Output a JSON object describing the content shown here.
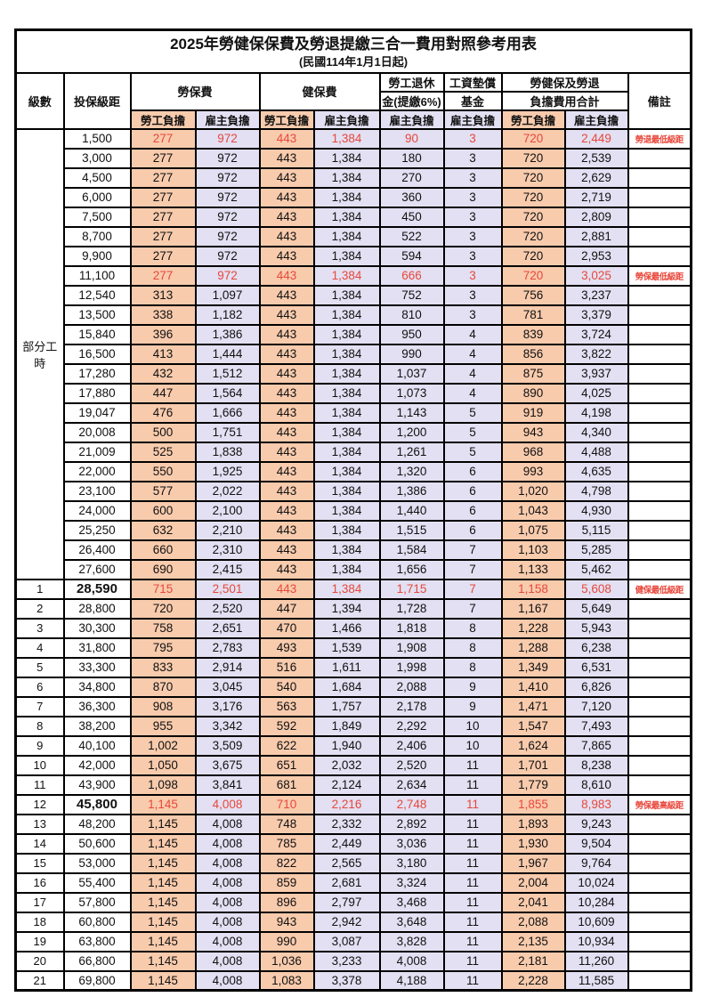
{
  "title": "2025年勞健保保費及勞退提繳三合一費用對照參考用表",
  "subtitle": "(民國114年1月1日起)",
  "columns": {
    "level": "級數",
    "bracket": "投保級距",
    "labor_insurance": "勞保費",
    "health_insurance": "健保費",
    "pension_line1": "勞工退休",
    "pension_line2": "金(提繳6%)",
    "wage_arrears_line1": "工資墊償",
    "wage_arrears_line2": "基金",
    "total_line1": "勞健保及勞退",
    "total_line2": "負擔費用合計",
    "remarks": "備註",
    "employee_share": "勞工負擔",
    "employer_share": "雇主負擔"
  },
  "part_time_label": "部分工時",
  "part_time_rowspan": 23,
  "colors": {
    "employee_share_bg": "#F8CBAD",
    "employer_share_bg": "#E2E0F2",
    "highlight_red": "#E8473B",
    "border": "#000000"
  },
  "value_column_classes": [
    "emp",
    "er",
    "emp",
    "er",
    "er",
    "er",
    "emp",
    "er"
  ],
  "rows": [
    {
      "level": "",
      "bracket": "1,500",
      "values": [
        "277",
        "972",
        "443",
        "1,384",
        "90",
        "3",
        "720",
        "2,449"
      ],
      "remark": "勞退最低級距",
      "red": true,
      "bold": false
    },
    {
      "level": "",
      "bracket": "3,000",
      "values": [
        "277",
        "972",
        "443",
        "1,384",
        "180",
        "3",
        "720",
        "2,539"
      ],
      "remark": "",
      "red": false,
      "bold": false
    },
    {
      "level": "",
      "bracket": "4,500",
      "values": [
        "277",
        "972",
        "443",
        "1,384",
        "270",
        "3",
        "720",
        "2,629"
      ],
      "remark": "",
      "red": false,
      "bold": false
    },
    {
      "level": "",
      "bracket": "6,000",
      "values": [
        "277",
        "972",
        "443",
        "1,384",
        "360",
        "3",
        "720",
        "2,719"
      ],
      "remark": "",
      "red": false,
      "bold": false
    },
    {
      "level": "",
      "bracket": "7,500",
      "values": [
        "277",
        "972",
        "443",
        "1,384",
        "450",
        "3",
        "720",
        "2,809"
      ],
      "remark": "",
      "red": false,
      "bold": false
    },
    {
      "level": "",
      "bracket": "8,700",
      "values": [
        "277",
        "972",
        "443",
        "1,384",
        "522",
        "3",
        "720",
        "2,881"
      ],
      "remark": "",
      "red": false,
      "bold": false
    },
    {
      "level": "",
      "bracket": "9,900",
      "values": [
        "277",
        "972",
        "443",
        "1,384",
        "594",
        "3",
        "720",
        "2,953"
      ],
      "remark": "",
      "red": false,
      "bold": false
    },
    {
      "level": "",
      "bracket": "11,100",
      "values": [
        "277",
        "972",
        "443",
        "1,384",
        "666",
        "3",
        "720",
        "3,025"
      ],
      "remark": "勞保最低級距",
      "red": true,
      "bold": false
    },
    {
      "level": "",
      "bracket": "12,540",
      "values": [
        "313",
        "1,097",
        "443",
        "1,384",
        "752",
        "3",
        "756",
        "3,237"
      ],
      "remark": "",
      "red": false,
      "bold": false
    },
    {
      "level": "",
      "bracket": "13,500",
      "values": [
        "338",
        "1,182",
        "443",
        "1,384",
        "810",
        "3",
        "781",
        "3,379"
      ],
      "remark": "",
      "red": false,
      "bold": false
    },
    {
      "level": "",
      "bracket": "15,840",
      "values": [
        "396",
        "1,386",
        "443",
        "1,384",
        "950",
        "4",
        "839",
        "3,724"
      ],
      "remark": "",
      "red": false,
      "bold": false
    },
    {
      "level": "",
      "bracket": "16,500",
      "values": [
        "413",
        "1,444",
        "443",
        "1,384",
        "990",
        "4",
        "856",
        "3,822"
      ],
      "remark": "",
      "red": false,
      "bold": false
    },
    {
      "level": "",
      "bracket": "17,280",
      "values": [
        "432",
        "1,512",
        "443",
        "1,384",
        "1,037",
        "4",
        "875",
        "3,937"
      ],
      "remark": "",
      "red": false,
      "bold": false
    },
    {
      "level": "",
      "bracket": "17,880",
      "values": [
        "447",
        "1,564",
        "443",
        "1,384",
        "1,073",
        "4",
        "890",
        "4,025"
      ],
      "remark": "",
      "red": false,
      "bold": false
    },
    {
      "level": "",
      "bracket": "19,047",
      "values": [
        "476",
        "1,666",
        "443",
        "1,384",
        "1,143",
        "5",
        "919",
        "4,198"
      ],
      "remark": "",
      "red": false,
      "bold": false
    },
    {
      "level": "",
      "bracket": "20,008",
      "values": [
        "500",
        "1,751",
        "443",
        "1,384",
        "1,200",
        "5",
        "943",
        "4,340"
      ],
      "remark": "",
      "red": false,
      "bold": false
    },
    {
      "level": "",
      "bracket": "21,009",
      "values": [
        "525",
        "1,838",
        "443",
        "1,384",
        "1,261",
        "5",
        "968",
        "4,488"
      ],
      "remark": "",
      "red": false,
      "bold": false
    },
    {
      "level": "",
      "bracket": "22,000",
      "values": [
        "550",
        "1,925",
        "443",
        "1,384",
        "1,320",
        "6",
        "993",
        "4,635"
      ],
      "remark": "",
      "red": false,
      "bold": false
    },
    {
      "level": "",
      "bracket": "23,100",
      "values": [
        "577",
        "2,022",
        "443",
        "1,384",
        "1,386",
        "6",
        "1,020",
        "4,798"
      ],
      "remark": "",
      "red": false,
      "bold": false
    },
    {
      "level": "",
      "bracket": "24,000",
      "values": [
        "600",
        "2,100",
        "443",
        "1,384",
        "1,440",
        "6",
        "1,043",
        "4,930"
      ],
      "remark": "",
      "red": false,
      "bold": false
    },
    {
      "level": "",
      "bracket": "25,250",
      "values": [
        "632",
        "2,210",
        "443",
        "1,384",
        "1,515",
        "6",
        "1,075",
        "5,115"
      ],
      "remark": "",
      "red": false,
      "bold": false
    },
    {
      "level": "",
      "bracket": "26,400",
      "values": [
        "660",
        "2,310",
        "443",
        "1,384",
        "1,584",
        "7",
        "1,103",
        "5,285"
      ],
      "remark": "",
      "red": false,
      "bold": false
    },
    {
      "level": "",
      "bracket": "27,600",
      "values": [
        "690",
        "2,415",
        "443",
        "1,384",
        "1,656",
        "7",
        "1,133",
        "5,462"
      ],
      "remark": "",
      "red": false,
      "bold": false
    },
    {
      "level": "1",
      "bracket": "28,590",
      "values": [
        "715",
        "2,501",
        "443",
        "1,384",
        "1,715",
        "7",
        "1,158",
        "5,608"
      ],
      "remark": "健保最低級距",
      "red": true,
      "bold": true
    },
    {
      "level": "2",
      "bracket": "28,800",
      "values": [
        "720",
        "2,520",
        "447",
        "1,394",
        "1,728",
        "7",
        "1,167",
        "5,649"
      ],
      "remark": "",
      "red": false,
      "bold": false
    },
    {
      "level": "3",
      "bracket": "30,300",
      "values": [
        "758",
        "2,651",
        "470",
        "1,466",
        "1,818",
        "8",
        "1,228",
        "5,943"
      ],
      "remark": "",
      "red": false,
      "bold": false
    },
    {
      "level": "4",
      "bracket": "31,800",
      "values": [
        "795",
        "2,783",
        "493",
        "1,539",
        "1,908",
        "8",
        "1,288",
        "6,238"
      ],
      "remark": "",
      "red": false,
      "bold": false
    },
    {
      "level": "5",
      "bracket": "33,300",
      "values": [
        "833",
        "2,914",
        "516",
        "1,611",
        "1,998",
        "8",
        "1,349",
        "6,531"
      ],
      "remark": "",
      "red": false,
      "bold": false
    },
    {
      "level": "6",
      "bracket": "34,800",
      "values": [
        "870",
        "3,045",
        "540",
        "1,684",
        "2,088",
        "9",
        "1,410",
        "6,826"
      ],
      "remark": "",
      "red": false,
      "bold": false
    },
    {
      "level": "7",
      "bracket": "36,300",
      "values": [
        "908",
        "3,176",
        "563",
        "1,757",
        "2,178",
        "9",
        "1,471",
        "7,120"
      ],
      "remark": "",
      "red": false,
      "bold": false
    },
    {
      "level": "8",
      "bracket": "38,200",
      "values": [
        "955",
        "3,342",
        "592",
        "1,849",
        "2,292",
        "10",
        "1,547",
        "7,493"
      ],
      "remark": "",
      "red": false,
      "bold": false
    },
    {
      "level": "9",
      "bracket": "40,100",
      "values": [
        "1,002",
        "3,509",
        "622",
        "1,940",
        "2,406",
        "10",
        "1,624",
        "7,865"
      ],
      "remark": "",
      "red": false,
      "bold": false
    },
    {
      "level": "10",
      "bracket": "42,000",
      "values": [
        "1,050",
        "3,675",
        "651",
        "2,032",
        "2,520",
        "11",
        "1,701",
        "8,238"
      ],
      "remark": "",
      "red": false,
      "bold": false
    },
    {
      "level": "11",
      "bracket": "43,900",
      "values": [
        "1,098",
        "3,841",
        "681",
        "2,124",
        "2,634",
        "11",
        "1,779",
        "8,610"
      ],
      "remark": "",
      "red": false,
      "bold": false
    },
    {
      "level": "12",
      "bracket": "45,800",
      "values": [
        "1,145",
        "4,008",
        "710",
        "2,216",
        "2,748",
        "11",
        "1,855",
        "8,983"
      ],
      "remark": "勞保最高級距",
      "red": true,
      "bold": true
    },
    {
      "level": "13",
      "bracket": "48,200",
      "values": [
        "1,145",
        "4,008",
        "748",
        "2,332",
        "2,892",
        "11",
        "1,893",
        "9,243"
      ],
      "remark": "",
      "red": false,
      "bold": false
    },
    {
      "level": "14",
      "bracket": "50,600",
      "values": [
        "1,145",
        "4,008",
        "785",
        "2,449",
        "3,036",
        "11",
        "1,930",
        "9,504"
      ],
      "remark": "",
      "red": false,
      "bold": false
    },
    {
      "level": "15",
      "bracket": "53,000",
      "values": [
        "1,145",
        "4,008",
        "822",
        "2,565",
        "3,180",
        "11",
        "1,967",
        "9,764"
      ],
      "remark": "",
      "red": false,
      "bold": false
    },
    {
      "level": "16",
      "bracket": "55,400",
      "values": [
        "1,145",
        "4,008",
        "859",
        "2,681",
        "3,324",
        "11",
        "2,004",
        "10,024"
      ],
      "remark": "",
      "red": false,
      "bold": false
    },
    {
      "level": "17",
      "bracket": "57,800",
      "values": [
        "1,145",
        "4,008",
        "896",
        "2,797",
        "3,468",
        "11",
        "2,041",
        "10,284"
      ],
      "remark": "",
      "red": false,
      "bold": false
    },
    {
      "level": "18",
      "bracket": "60,800",
      "values": [
        "1,145",
        "4,008",
        "943",
        "2,942",
        "3,648",
        "11",
        "2,088",
        "10,609"
      ],
      "remark": "",
      "red": false,
      "bold": false
    },
    {
      "level": "19",
      "bracket": "63,800",
      "values": [
        "1,145",
        "4,008",
        "990",
        "3,087",
        "3,828",
        "11",
        "2,135",
        "10,934"
      ],
      "remark": "",
      "red": false,
      "bold": false
    },
    {
      "level": "20",
      "bracket": "66,800",
      "values": [
        "1,145",
        "4,008",
        "1,036",
        "3,233",
        "4,008",
        "11",
        "2,181",
        "11,260"
      ],
      "remark": "",
      "red": false,
      "bold": false
    },
    {
      "level": "21",
      "bracket": "69,800",
      "values": [
        "1,145",
        "4,008",
        "1,083",
        "3,378",
        "4,188",
        "11",
        "2,228",
        "11,585"
      ],
      "remark": "",
      "red": false,
      "bold": false
    }
  ]
}
